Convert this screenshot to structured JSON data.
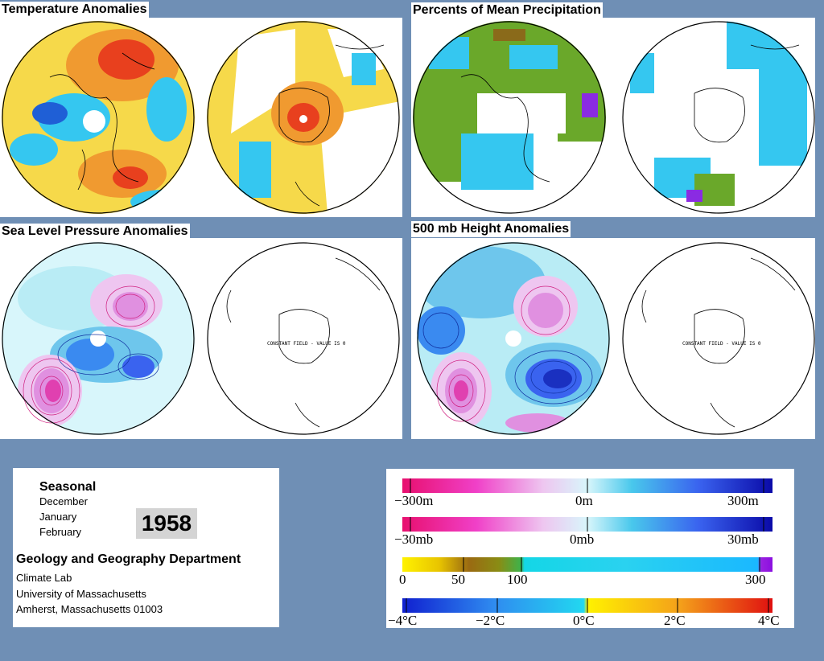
{
  "panels": {
    "temperature": {
      "title": "Temperature Anomalies"
    },
    "precipitation": {
      "title": "Percents of Mean Precipitation"
    },
    "slp": {
      "title": "Sea Level Pressure Anomalies",
      "constant_text": "CONSTANT FIELD - VALUE IS 0"
    },
    "height": {
      "title": "500 mb Height Anomalies",
      "constant_text": "CONSTANT FIELD - VALUE IS 0"
    }
  },
  "info": {
    "season_label": "Seasonal",
    "months": [
      "December",
      "January",
      "February"
    ],
    "year": "1958",
    "department": "Geology and Geography Department",
    "address_lines": [
      "Climate Lab",
      "University of Massachusetts",
      "Amherst, Massachusetts 01003"
    ]
  },
  "legend": {
    "height_scale": {
      "min": "−300m",
      "mid": "0m",
      "max": "300m"
    },
    "pressure_scale": {
      "min": "−30mb",
      "mid": "0mb",
      "max": "30mb"
    },
    "precip_scale": {
      "a": "0",
      "b": "50",
      "c": "100",
      "d": "300"
    },
    "temp_scale": {
      "a": "−4°C",
      "b": "−2°C",
      "c": "0°C",
      "d": "2°C",
      "e": "4°C"
    }
  },
  "colors": {
    "background": "#6f8fb5",
    "warm": "#e8401e",
    "cool": "#1f5fd6",
    "neutral_temp": "#f6d94a",
    "wet": "#35c7f0",
    "dry": "#6aa82a",
    "low_pressure": "#2a4fd8",
    "high_pressure": "#e0208c"
  }
}
